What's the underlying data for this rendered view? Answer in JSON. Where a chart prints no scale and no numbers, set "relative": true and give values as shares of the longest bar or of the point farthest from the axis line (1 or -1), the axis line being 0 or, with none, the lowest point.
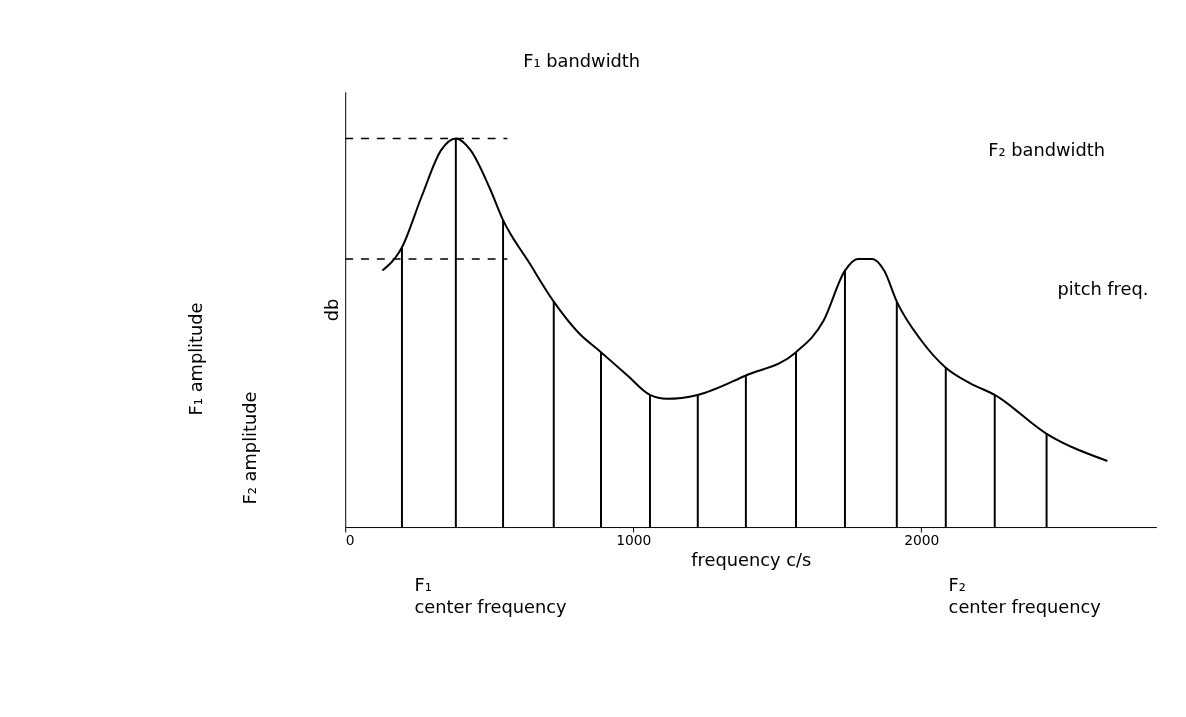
{
  "chart_data": {
    "type": "line",
    "relative": true,
    "xlabel": "frequency c/s",
    "ylabel": "db",
    "xlim": [
      0,
      2816
    ],
    "xticks": [
      0,
      1000,
      2000
    ],
    "grid": false,
    "series": [
      {
        "color": "#000000",
        "x": [
          129,
          197,
          265,
          333,
          384,
          435,
          503,
          548,
          639,
          724,
          810,
          888,
          980,
          1058,
          1116,
          1224,
          1391,
          1565,
          1660,
          1735,
          1779,
          1830,
          1871,
          1915,
          2000,
          2085,
          2170,
          2255,
          2435,
          2646
        ],
        "values": [
          0.66,
          0.72,
          0.85,
          0.97,
          1.0,
          0.97,
          0.87,
          0.79,
          0.68,
          0.58,
          0.5,
          0.45,
          0.39,
          0.34,
          0.33,
          0.34,
          0.39,
          0.45,
          0.53,
          0.66,
          0.69,
          0.69,
          0.66,
          0.58,
          0.48,
          0.41,
          0.37,
          0.34,
          0.24,
          0.17
        ]
      },
      {
        "type": "bar",
        "color": "#000000",
        "x": [
          197,
          384,
          548,
          724,
          888,
          1058,
          1224,
          1391,
          1565,
          1735,
          1915,
          2085,
          2255,
          2435
        ],
        "values": [
          0.72,
          1.0,
          0.79,
          0.58,
          0.45,
          0.34,
          0.34,
          0.39,
          0.45,
          0.66,
          0.58,
          0.41,
          0.34,
          0.24
        ]
      }
    ],
    "ref_lines": [
      {
        "axis": "y",
        "value": 1.0,
        "line_style": "dashed",
        "color": "#000000"
      },
      {
        "axis": "y",
        "value": 0.69,
        "line_style": "dashed",
        "color": "#000000"
      }
    ],
    "annotations": [
      "F₁ bandwidth",
      "F₂ bandwidth",
      "pitch freq.",
      "F₁ amplitude",
      "F₂ amplitude",
      "F₁ center frequency",
      "F₂ center frequency"
    ]
  }
}
